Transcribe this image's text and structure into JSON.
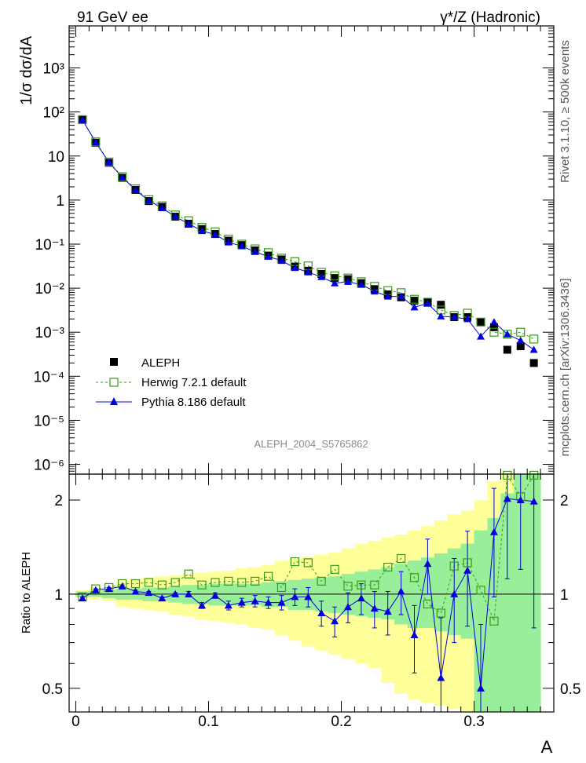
{
  "header": {
    "left": "91 GeV ee",
    "right": "γ*/Z (Hadronic)"
  },
  "side_labels": {
    "top": "Rivet 3.1.10, ≥ 500k events",
    "bottom": "mcplots.cern.ch [arXiv:1306.3436]"
  },
  "watermark": "ALEPH_2004_S5765862",
  "chart_data": [
    {
      "type": "scatter",
      "ylabel": "1/σ dσ/dA",
      "xlabel": "A",
      "xlim": [
        -0.005,
        0.36
      ],
      "ylim": [
        6e-07,
        9000
      ],
      "yscale": "log",
      "x_ticks": [
        "0",
        "0.1",
        "0.2",
        "0.3"
      ],
      "y_ticks": [
        "10⁻⁶",
        "10⁻⁵",
        "10⁻⁴",
        "10⁻³",
        "10⁻²",
        "10⁻¹",
        "1",
        "10",
        "10²",
        "10³"
      ],
      "legend_position": "bottom-left",
      "x": [
        0.005,
        0.015,
        0.025,
        0.035,
        0.045,
        0.055,
        0.065,
        0.075,
        0.085,
        0.095,
        0.105,
        0.115,
        0.125,
        0.135,
        0.145,
        0.155,
        0.165,
        0.175,
        0.185,
        0.195,
        0.205,
        0.215,
        0.225,
        0.235,
        0.245,
        0.255,
        0.265,
        0.275,
        0.285,
        0.295,
        0.305,
        0.315,
        0.325,
        0.335,
        0.345
      ],
      "series": [
        {
          "name": "ALEPH",
          "color": "#000000",
          "marker": "filled-square",
          "values": [
            68,
            20,
            7,
            3.2,
            1.7,
            0.95,
            0.7,
            0.42,
            0.29,
            0.22,
            0.17,
            0.12,
            0.095,
            0.072,
            0.055,
            0.045,
            0.031,
            0.025,
            0.021,
            0.017,
            0.016,
            0.013,
            0.0095,
            0.0072,
            0.0062,
            0.0052,
            0.0048,
            0.0042,
            0.0022,
            0.0022,
            0.0017,
            0.0013,
            0.0004,
            0.00048,
            0.0002
          ]
        },
        {
          "name": "Herwig 7.2.1 default",
          "color": "#3a9a1a",
          "marker": "open-square",
          "dash": "3,3",
          "values": [
            67,
            21,
            7.3,
            3.4,
            1.8,
            1.02,
            0.74,
            0.46,
            0.34,
            0.24,
            0.19,
            0.13,
            0.1,
            0.078,
            0.064,
            0.048,
            0.04,
            0.032,
            0.023,
            0.019,
            0.017,
            0.014,
            0.011,
            0.0088,
            0.0079,
            0.0056,
            0.0048,
            0.0032,
            0.0024,
            0.0027,
            0.0017,
            0.001,
            0.0009,
            0.001,
            0.0007
          ]
        },
        {
          "name": "Pythia 8.186 default",
          "color": "#0000dd",
          "marker": "triangle",
          "values": [
            66,
            20.5,
            7.2,
            3.3,
            1.7,
            0.97,
            0.66,
            0.42,
            0.29,
            0.2,
            0.165,
            0.11,
            0.09,
            0.067,
            0.052,
            0.042,
            0.029,
            0.023,
            0.018,
            0.013,
            0.014,
            0.012,
            0.0085,
            0.0065,
            0.0065,
            0.0037,
            0.0045,
            0.0023,
            0.0022,
            0.002,
            0.0008,
            0.0017,
            0.0009,
            0.00065,
            0.0004
          ]
        }
      ]
    },
    {
      "type": "scatter",
      "ylabel": "Ratio to ALEPH",
      "xlabel": "A",
      "xlim": [
        -0.005,
        0.36
      ],
      "ylim": [
        0.42,
        2.42
      ],
      "yscale": "log",
      "x_ticks": [
        "0",
        "0.1",
        "0.2",
        "0.3"
      ],
      "y_ticks": [
        "0.5",
        "1",
        "2"
      ],
      "reference_line": 1,
      "x": [
        0.005,
        0.015,
        0.025,
        0.035,
        0.045,
        0.055,
        0.065,
        0.075,
        0.085,
        0.095,
        0.105,
        0.115,
        0.125,
        0.135,
        0.145,
        0.155,
        0.165,
        0.175,
        0.185,
        0.195,
        0.205,
        0.215,
        0.225,
        0.235,
        0.245,
        0.255,
        0.265,
        0.275,
        0.285,
        0.295,
        0.305,
        0.315,
        0.325,
        0.335,
        0.345
      ],
      "bands": {
        "stat_green_lo": [
          0.98,
          0.98,
          0.97,
          0.96,
          0.96,
          0.95,
          0.95,
          0.94,
          0.93,
          0.93,
          0.92,
          0.92,
          0.92,
          0.92,
          0.91,
          0.91,
          0.89,
          0.89,
          0.88,
          0.87,
          0.86,
          0.85,
          0.84,
          0.83,
          0.8,
          0.78,
          0.78,
          0.76,
          0.74,
          0.72,
          0.42,
          0.42,
          0.42,
          0.42,
          0.42
        ],
        "stat_green_hi": [
          1.02,
          1.02,
          1.03,
          1.04,
          1.04,
          1.05,
          1.05,
          1.06,
          1.07,
          1.07,
          1.08,
          1.08,
          1.08,
          1.08,
          1.09,
          1.1,
          1.11,
          1.12,
          1.13,
          1.14,
          1.16,
          1.18,
          1.2,
          1.22,
          1.25,
          1.28,
          1.31,
          1.35,
          1.4,
          1.45,
          1.6,
          1.75,
          2.1,
          2.42,
          2.42
        ],
        "total_yellow_lo": [
          0.97,
          0.96,
          0.95,
          0.91,
          0.9,
          0.89,
          0.88,
          0.86,
          0.85,
          0.83,
          0.82,
          0.81,
          0.8,
          0.78,
          0.77,
          0.74,
          0.71,
          0.68,
          0.66,
          0.64,
          0.62,
          0.6,
          0.58,
          0.52,
          0.48,
          0.46,
          0.45,
          0.44,
          0.43,
          0.42,
          0.42,
          0.42,
          0.42,
          0.42,
          0.42
        ],
        "total_yellow_hi": [
          1.03,
          1.04,
          1.05,
          1.1,
          1.12,
          1.13,
          1.14,
          1.15,
          1.16,
          1.17,
          1.18,
          1.19,
          1.21,
          1.22,
          1.24,
          1.28,
          1.3,
          1.32,
          1.34,
          1.36,
          1.4,
          1.45,
          1.48,
          1.52,
          1.55,
          1.6,
          1.65,
          1.72,
          1.8,
          1.85,
          2.0,
          2.3,
          2.42,
          2.42,
          2.42
        ]
      },
      "series": [
        {
          "name": "Herwig 7.2.1 default",
          "color": "#3a9a1a",
          "marker": "open-square",
          "dash": "3,3",
          "values": [
            0.98,
            1.04,
            1.05,
            1.08,
            1.08,
            1.09,
            1.07,
            1.09,
            1.16,
            1.07,
            1.09,
            1.1,
            1.09,
            1.1,
            1.14,
            1.05,
            1.27,
            1.26,
            1.1,
            1.2,
            1.06,
            1.07,
            1.07,
            1.22,
            1.3,
            1.13,
            0.93,
            0.87,
            1.23,
            1.26,
            1.03,
            0.82,
            2.4,
            2.05,
            2.4
          ]
        },
        {
          "name": "Pythia 8.186 default",
          "color": "#0000dd",
          "marker": "triangle",
          "values": [
            0.97,
            1.03,
            1.04,
            1.06,
            1.02,
            1.01,
            0.97,
            1.0,
            1.0,
            0.92,
            0.99,
            0.92,
            0.94,
            0.95,
            0.94,
            0.94,
            0.98,
            0.98,
            0.87,
            0.82,
            0.91,
            0.97,
            0.9,
            0.88,
            1.02,
            0.74,
            1.25,
            0.54,
            1.0,
            1.19,
            0.5,
            1.58,
            2.02,
            2.0,
            1.98
          ],
          "err_lo": [
            0.01,
            0.01,
            0.01,
            0.01,
            0.01,
            0.01,
            0.01,
            0.01,
            0.02,
            0.02,
            0.02,
            0.03,
            0.03,
            0.04,
            0.04,
            0.05,
            0.06,
            0.07,
            0.08,
            0.09,
            0.1,
            0.11,
            0.12,
            0.14,
            0.16,
            0.18,
            0.25,
            0.2,
            0.3,
            0.4,
            0.2,
            0.6,
            0.9,
            0.8,
            1.2
          ],
          "err_hi": [
            0.01,
            0.01,
            0.01,
            0.01,
            0.01,
            0.01,
            0.01,
            0.01,
            0.02,
            0.02,
            0.02,
            0.03,
            0.03,
            0.04,
            0.04,
            0.05,
            0.06,
            0.07,
            0.08,
            0.09,
            0.1,
            0.11,
            0.12,
            0.14,
            0.16,
            0.18,
            0.25,
            0.3,
            0.3,
            0.4,
            0.3,
            0.6,
            0.6,
            0.6,
            0.6
          ]
        }
      ]
    }
  ]
}
